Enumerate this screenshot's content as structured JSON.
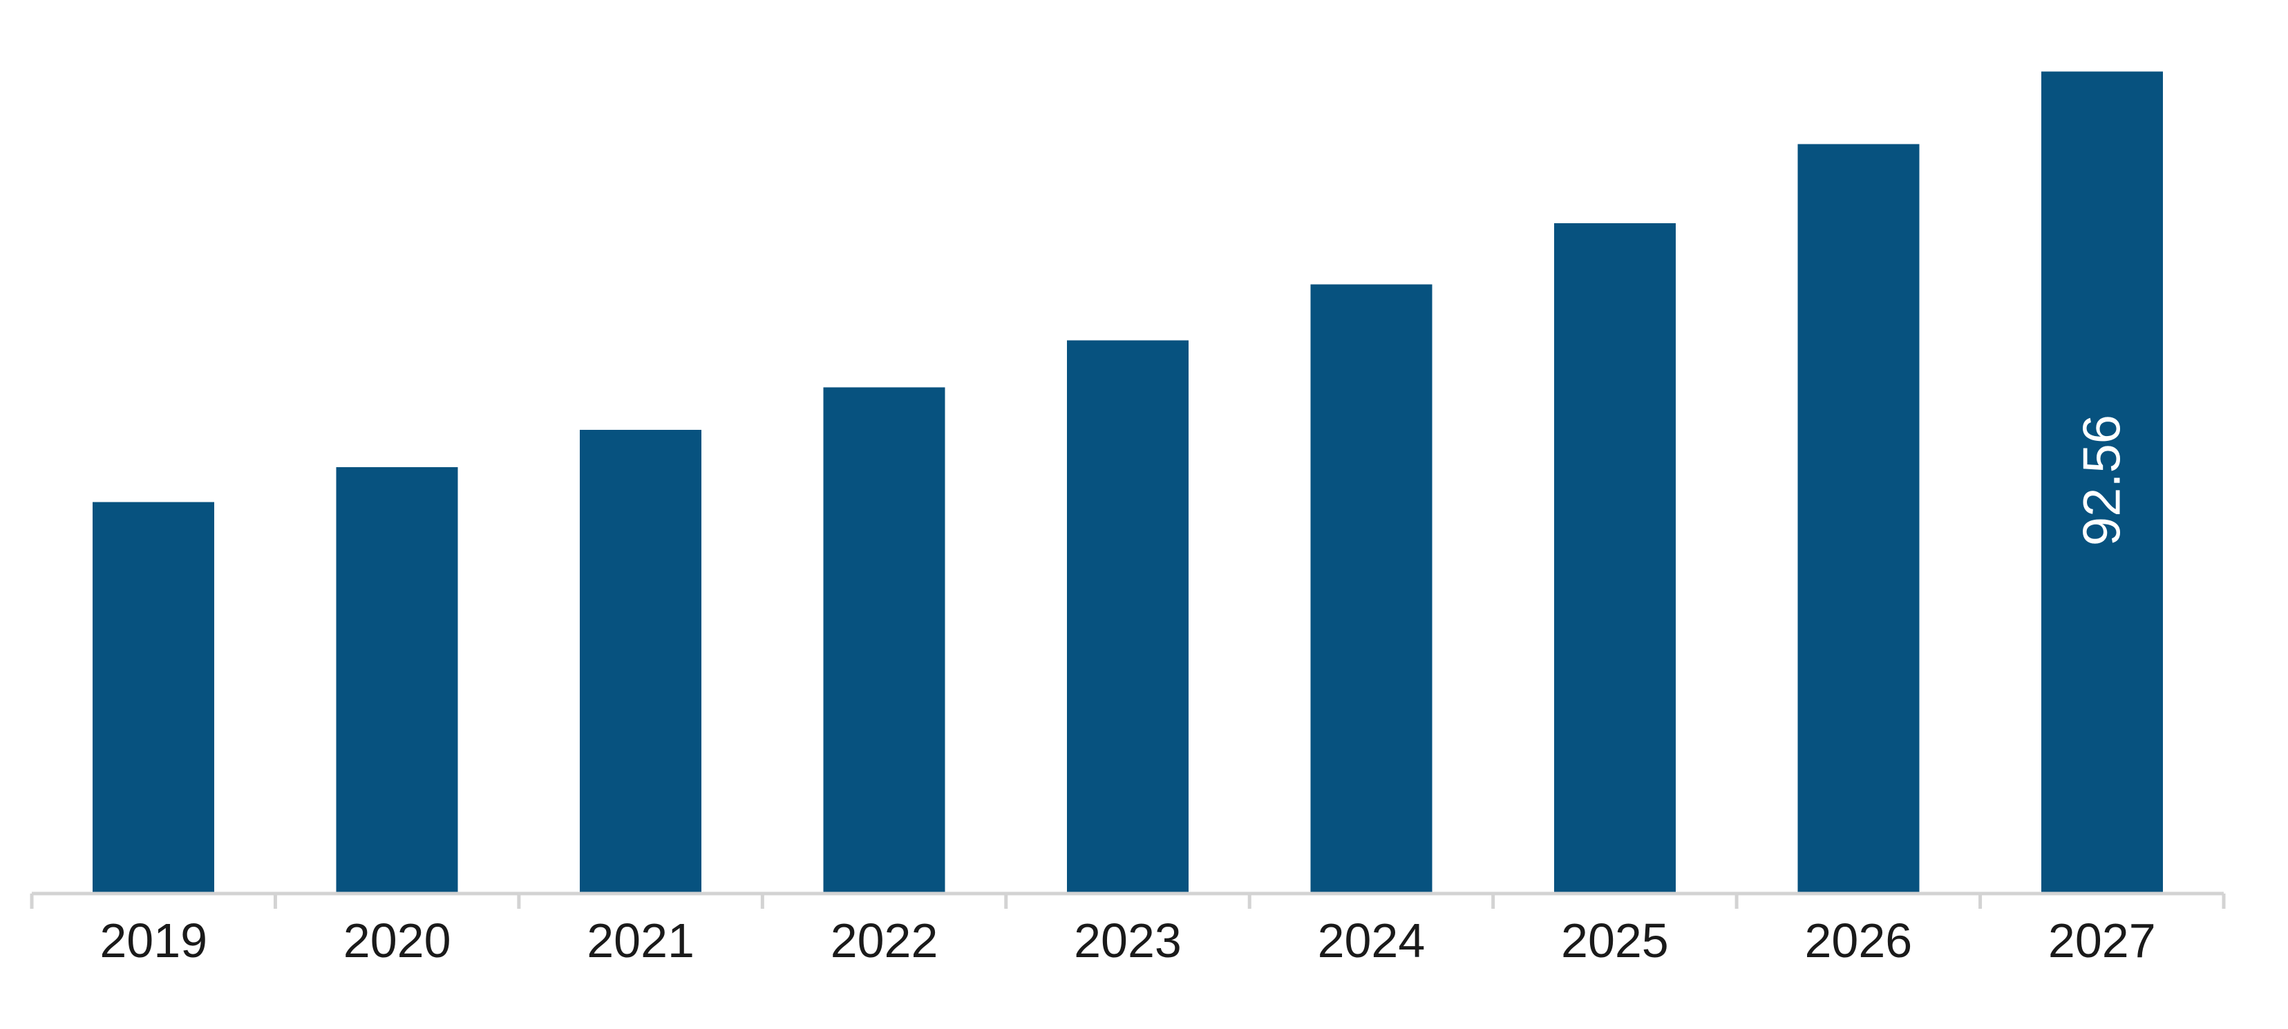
{
  "chart_data": {
    "type": "bar",
    "categories": [
      "2019",
      "2020",
      "2021",
      "2022",
      "2023",
      "2024",
      "2025",
      "2026",
      "2027"
    ],
    "values": [
      44.1,
      48.0,
      52.2,
      57.0,
      62.3,
      68.6,
      75.5,
      84.4,
      92.56
    ],
    "data_labels": [
      {
        "category": "2027",
        "text": "92.56",
        "orientation": "vertical"
      }
    ],
    "title": "",
    "xlabel": "",
    "ylabel": "",
    "ylim": [
      0,
      100
    ],
    "grid": false,
    "legend": "none",
    "colors": {
      "bar": "#07527f",
      "axis": "#d3d3d3",
      "tick_text": "#1a1a1a",
      "data_label_text": "#ffffff"
    }
  }
}
